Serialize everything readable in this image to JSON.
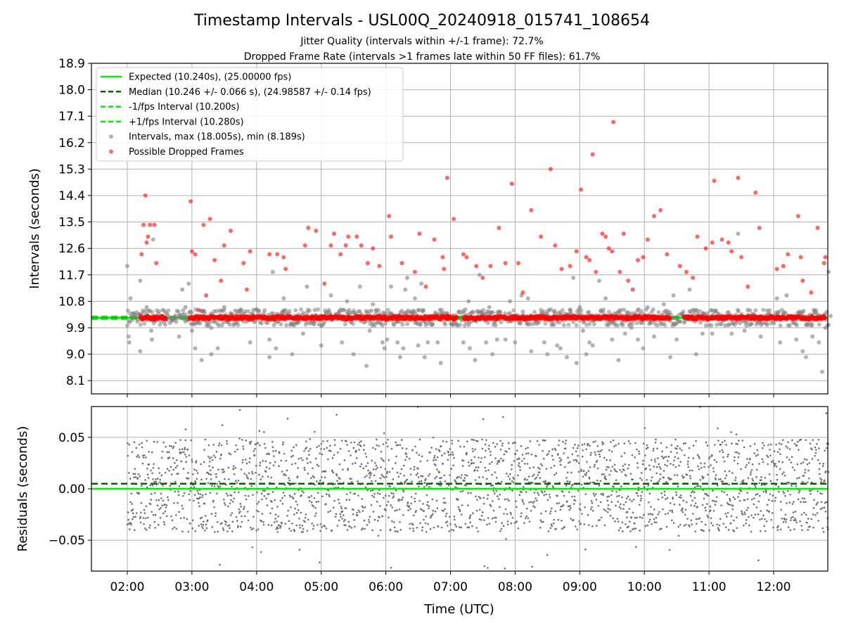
{
  "chart_data": [
    {
      "type": "scatter",
      "title": "Timestamp Intervals - USL00Q_20240918_015741_108654",
      "subtitle_1": "Jitter Quality (intervals within +/-1 frame): 72.7%",
      "subtitle_2": "Dropped Frame Rate (intervals >1 frames late within 50 FF files): 61.7%",
      "xlabel": "",
      "ylabel": "Intervals (seconds)",
      "ylim": [
        7.65,
        18.9
      ],
      "yticks": [
        "8.1",
        "9.0",
        "9.9",
        "10.8",
        "11.7",
        "12.6",
        "13.5",
        "14.4",
        "15.3",
        "16.2",
        "17.1",
        "18.0",
        "18.9"
      ],
      "grid": true,
      "legend_position": "top-left",
      "lines": [
        {
          "name": "Expected (10.240s), (25.00000 fps)",
          "y": 10.24,
          "style": "solid",
          "color": "#00ee00"
        },
        {
          "name": "Median (10.246 +/- 0.066 s), (24.98587 +/- 0.14 fps)",
          "y": 10.246,
          "style": "dashed",
          "color": "#006400"
        },
        {
          "name": "-1/fps Interval (10.200s)",
          "y": 10.2,
          "style": "dashed",
          "color": "#00ee00"
        },
        {
          "name": "+1/fps Interval (10.280s)",
          "y": 10.28,
          "style": "dashed",
          "color": "#00ee00"
        }
      ],
      "series": [
        {
          "name": "Intervals, max (18.005s), min (8.189s)",
          "color": "#808080",
          "points": [
            [
              2.0,
              12.0
            ],
            [
              2.02,
              9.6
            ],
            [
              2.03,
              9.4
            ],
            [
              2.05,
              10.9
            ],
            [
              2.2,
              9.1
            ],
            [
              2.2,
              11.5
            ],
            [
              2.3,
              10.6
            ],
            [
              2.37,
              9.8
            ],
            [
              2.38,
              9.5
            ],
            [
              2.4,
              12.9
            ],
            [
              2.55,
              10.5
            ],
            [
              2.6,
              10.4
            ],
            [
              2.8,
              9.6
            ],
            [
              2.85,
              11.2
            ],
            [
              2.9,
              10.6
            ],
            [
              2.95,
              11.4
            ],
            [
              3.0,
              9.8
            ],
            [
              3.05,
              9.2
            ],
            [
              3.1,
              10.1
            ],
            [
              3.15,
              8.8
            ],
            [
              3.3,
              9.9
            ],
            [
              3.3,
              9.0
            ],
            [
              3.4,
              9.2
            ],
            [
              3.45,
              10.3
            ],
            [
              3.5,
              10.6
            ],
            [
              3.7,
              10.1
            ],
            [
              3.9,
              9.4
            ],
            [
              3.95,
              10.5
            ],
            [
              4.2,
              9.5
            ],
            [
              4.2,
              8.9
            ],
            [
              4.25,
              11.8
            ],
            [
              4.3,
              9.2
            ],
            [
              4.42,
              10.9
            ],
            [
              4.55,
              9.0
            ],
            [
              4.62,
              10.1
            ],
            [
              4.72,
              9.7
            ],
            [
              4.78,
              11.3
            ],
            [
              4.9,
              10.5
            ],
            [
              5.0,
              9.3
            ],
            [
              5.07,
              10.3
            ],
            [
              5.15,
              11.0
            ],
            [
              5.32,
              9.4
            ],
            [
              5.4,
              10.8
            ],
            [
              5.5,
              9.0
            ],
            [
              5.6,
              11.3
            ],
            [
              5.7,
              8.6
            ],
            [
              5.75,
              9.8
            ],
            [
              5.8,
              10.7
            ],
            [
              5.85,
              10.5
            ],
            [
              5.95,
              9.4
            ],
            [
              5.98,
              9.2
            ],
            [
              6.02,
              9.5
            ],
            [
              6.08,
              11.3
            ],
            [
              6.18,
              9.4
            ],
            [
              6.22,
              8.9
            ],
            [
              6.27,
              9.2
            ],
            [
              6.3,
              11.2
            ],
            [
              6.33,
              11.6
            ],
            [
              6.45,
              10.9
            ],
            [
              6.5,
              9.3
            ],
            [
              6.55,
              11.4
            ],
            [
              6.6,
              8.9
            ],
            [
              6.65,
              9.4
            ],
            [
              6.8,
              9.4
            ],
            [
              6.85,
              8.7
            ],
            [
              6.95,
              10.4
            ],
            [
              7.05,
              10.0
            ],
            [
              7.2,
              9.4
            ],
            [
              7.28,
              10.8
            ],
            [
              7.3,
              9.2
            ],
            [
              7.38,
              8.8
            ],
            [
              7.45,
              11.7
            ],
            [
              7.55,
              9.4
            ],
            [
              7.6,
              10.6
            ],
            [
              7.65,
              9.0
            ],
            [
              7.72,
              9.5
            ],
            [
              7.78,
              10.3
            ],
            [
              7.85,
              9.5
            ],
            [
              7.92,
              10.8
            ],
            [
              8.0,
              9.4
            ],
            [
              8.1,
              11.0
            ],
            [
              8.2,
              10.9
            ],
            [
              8.25,
              9.1
            ],
            [
              8.4,
              10.5
            ],
            [
              8.45,
              9.4
            ],
            [
              8.5,
              9.0
            ],
            [
              8.6,
              10.0
            ],
            [
              8.65,
              9.3
            ],
            [
              8.7,
              9.2
            ],
            [
              8.8,
              8.9
            ],
            [
              8.85,
              10.5
            ],
            [
              8.9,
              11.6
            ],
            [
              8.95,
              8.7
            ],
            [
              9.0,
              10.6
            ],
            [
              9.05,
              9.8
            ],
            [
              9.1,
              9.0
            ],
            [
              9.15,
              9.4
            ],
            [
              9.2,
              9.3
            ],
            [
              9.25,
              10.2
            ],
            [
              9.3,
              11.5
            ],
            [
              9.4,
              10.9
            ],
            [
              9.5,
              9.5
            ],
            [
              9.55,
              10.0
            ],
            [
              9.6,
              8.8
            ],
            [
              9.7,
              9.7
            ],
            [
              9.8,
              9.9
            ],
            [
              9.9,
              9.5
            ],
            [
              9.98,
              9.2
            ],
            [
              10.05,
              10.6
            ],
            [
              10.15,
              9.6
            ],
            [
              10.3,
              10.7
            ],
            [
              10.4,
              8.9
            ],
            [
              10.45,
              11.0
            ],
            [
              10.5,
              9.5
            ],
            [
              10.7,
              11.2
            ],
            [
              10.8,
              9.0
            ],
            [
              10.9,
              9.7
            ],
            [
              11.05,
              9.7
            ],
            [
              11.2,
              10.3
            ],
            [
              11.3,
              10.0
            ],
            [
              11.35,
              9.7
            ],
            [
              11.45,
              13.1
            ],
            [
              11.55,
              9.8
            ],
            [
              11.6,
              10.5
            ],
            [
              11.8,
              9.6
            ],
            [
              11.9,
              10.0
            ],
            [
              12.05,
              10.9
            ],
            [
              12.1,
              9.4
            ],
            [
              12.2,
              11.0
            ],
            [
              12.35,
              9.5
            ],
            [
              12.45,
              9.1
            ],
            [
              12.5,
              8.9
            ],
            [
              12.6,
              9.6
            ],
            [
              12.7,
              9.4
            ],
            [
              12.75,
              8.4
            ],
            [
              12.8,
              9.9
            ],
            [
              12.85,
              11.8
            ],
            [
              12.88,
              10.3
            ]
          ]
        },
        {
          "name": "Possible Dropped Frames",
          "color": "#ff0000",
          "points": [
            [
              2.22,
              12.4
            ],
            [
              2.25,
              13.4
            ],
            [
              2.28,
              14.4
            ],
            [
              2.3,
              12.8
            ],
            [
              2.32,
              13.0
            ],
            [
              2.35,
              13.4
            ],
            [
              2.42,
              13.4
            ],
            [
              2.45,
              12.1
            ],
            [
              2.98,
              14.2
            ],
            [
              3.0,
              12.5
            ],
            [
              3.05,
              12.4
            ],
            [
              3.1,
              10.5
            ],
            [
              3.18,
              13.4
            ],
            [
              3.22,
              11.0
            ],
            [
              3.28,
              13.6
            ],
            [
              3.35,
              12.2
            ],
            [
              3.45,
              11.5
            ],
            [
              3.5,
              12.7
            ],
            [
              3.6,
              13.2
            ],
            [
              3.8,
              12.1
            ],
            [
              3.85,
              11.2
            ],
            [
              3.9,
              12.5
            ],
            [
              4.2,
              12.4
            ],
            [
              4.32,
              12.4
            ],
            [
              4.42,
              12.3
            ],
            [
              4.45,
              11.9
            ],
            [
              4.75,
              12.7
            ],
            [
              4.8,
              13.3
            ],
            [
              4.92,
              13.2
            ],
            [
              5.05,
              11.4
            ],
            [
              5.15,
              12.7
            ],
            [
              5.2,
              13.1
            ],
            [
              5.3,
              12.4
            ],
            [
              5.38,
              12.7
            ],
            [
              5.42,
              13.0
            ],
            [
              5.55,
              13.0
            ],
            [
              5.62,
              12.7
            ],
            [
              5.72,
              12.1
            ],
            [
              5.8,
              12.6
            ],
            [
              5.9,
              12.0
            ],
            [
              6.05,
              13.7
            ],
            [
              6.08,
              13.0
            ],
            [
              6.25,
              12.1
            ],
            [
              6.45,
              11.8
            ],
            [
              6.52,
              13.1
            ],
            [
              6.62,
              11.3
            ],
            [
              6.75,
              12.9
            ],
            [
              6.88,
              12.3
            ],
            [
              6.9,
              11.9
            ],
            [
              6.95,
              15.0
            ],
            [
              7.05,
              13.6
            ],
            [
              7.2,
              12.4
            ],
            [
              7.25,
              12.3
            ],
            [
              7.4,
              12.0
            ],
            [
              7.5,
              11.6
            ],
            [
              7.62,
              12.0
            ],
            [
              7.75,
              13.3
            ],
            [
              7.85,
              12.1
            ],
            [
              7.95,
              14.8
            ],
            [
              8.05,
              12.1
            ],
            [
              8.12,
              11.1
            ],
            [
              8.25,
              13.9
            ],
            [
              8.4,
              13.0
            ],
            [
              8.55,
              15.3
            ],
            [
              8.62,
              12.7
            ],
            [
              8.72,
              11.9
            ],
            [
              8.85,
              12.0
            ],
            [
              8.95,
              12.5
            ],
            [
              9.02,
              14.6
            ],
            [
              9.1,
              12.3
            ],
            [
              9.15,
              12.2
            ],
            [
              9.2,
              15.8
            ],
            [
              9.25,
              11.8
            ],
            [
              9.35,
              13.1
            ],
            [
              9.4,
              13.0
            ],
            [
              9.45,
              12.6
            ],
            [
              9.5,
              12.5
            ],
            [
              9.52,
              16.9
            ],
            [
              9.62,
              11.8
            ],
            [
              9.68,
              13.1
            ],
            [
              9.75,
              11.5
            ],
            [
              9.82,
              11.2
            ],
            [
              9.9,
              12.2
            ],
            [
              9.98,
              12.3
            ],
            [
              10.05,
              12.9
            ],
            [
              10.15,
              13.7
            ],
            [
              10.25,
              13.9
            ],
            [
              10.35,
              12.4
            ],
            [
              10.55,
              12.0
            ],
            [
              10.65,
              11.8
            ],
            [
              10.75,
              11.6
            ],
            [
              10.82,
              13.0
            ],
            [
              10.95,
              12.6
            ],
            [
              11.05,
              12.8
            ],
            [
              11.08,
              14.9
            ],
            [
              11.2,
              12.9
            ],
            [
              11.3,
              12.8
            ],
            [
              11.35,
              12.5
            ],
            [
              11.45,
              15.0
            ],
            [
              11.5,
              12.3
            ],
            [
              11.6,
              11.3
            ],
            [
              11.72,
              14.5
            ],
            [
              11.78,
              13.3
            ],
            [
              12.05,
              11.9
            ],
            [
              12.15,
              12.0
            ],
            [
              12.22,
              12.4
            ],
            [
              12.38,
              13.7
            ],
            [
              12.42,
              12.3
            ],
            [
              12.45,
              11.5
            ],
            [
              12.58,
              11.1
            ],
            [
              12.68,
              13.3
            ],
            [
              12.78,
              12.1
            ],
            [
              12.8,
              12.3
            ]
          ]
        }
      ],
      "xlim": [
        1.45,
        12.85
      ]
    },
    {
      "type": "scatter",
      "xlabel": "Time (UTC)",
      "ylabel": "Residuals (seconds)",
      "xticks": [
        "02:00",
        "03:00",
        "04:00",
        "05:00",
        "06:00",
        "07:00",
        "08:00",
        "09:00",
        "10:00",
        "11:00",
        "12:00"
      ],
      "yticks": [
        "0.05",
        "0.00",
        "−0.05"
      ],
      "ylim": [
        -0.08,
        0.08
      ],
      "xlim": [
        1.45,
        12.85
      ],
      "grid": true,
      "lines": [
        {
          "y": 0.0,
          "style": "solid",
          "color": "#00ee00"
        },
        {
          "y": 0.005,
          "style": "dashed",
          "color": "#006400"
        }
      ],
      "series": [
        {
          "color": "#707070",
          "distribution": "dense residual scatter, approx. ±0.05 s"
        }
      ]
    }
  ]
}
